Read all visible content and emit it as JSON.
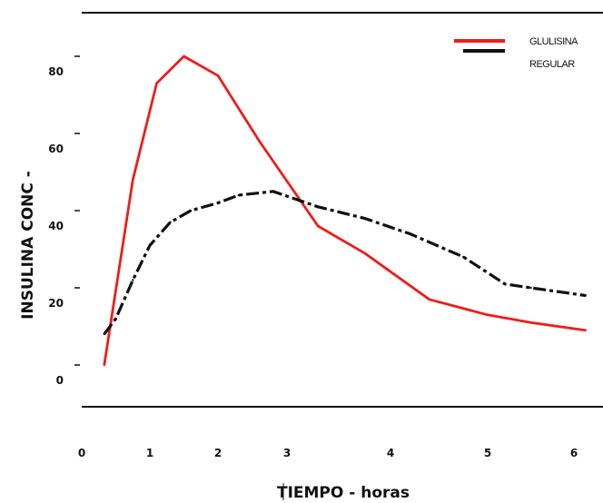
{
  "chart_data": {
    "type": "line",
    "title": "",
    "xlabel": "TIEMPO - horas",
    "ylabel": "INSULINA CONC -",
    "x_ticks": [
      "0",
      "1",
      "2",
      "3",
      "4",
      "5",
      "6"
    ],
    "y_ticks": [
      "0",
      "20",
      "40",
      "60",
      "80"
    ],
    "xlim": [
      0,
      6.5
    ],
    "ylim": [
      0,
      80
    ],
    "grid": false,
    "legend_position": "top-right",
    "series": [
      {
        "name": "GLULISINA",
        "color": "#ee1c1c",
        "style": "solid",
        "x": [
          0.33,
          0.75,
          1.1,
          1.5,
          2.0,
          2.6,
          3.3,
          3.75,
          4.4,
          5.0,
          5.5,
          6.2
        ],
        "y": [
          0,
          48,
          73,
          80,
          75,
          58,
          36,
          29,
          17,
          13,
          11,
          9
        ]
      },
      {
        "name": "REGULAR",
        "color": "#111111",
        "style": "dashed",
        "x": [
          0.33,
          0.5,
          0.75,
          1.0,
          1.3,
          1.6,
          2.0,
          2.3,
          2.8,
          3.3,
          3.75,
          4.2,
          4.75,
          5.2,
          5.5,
          6.2
        ],
        "y": [
          8,
          12,
          22,
          31,
          37,
          40,
          42,
          44,
          45,
          41,
          38,
          34,
          28,
          21,
          20,
          18
        ]
      }
    ]
  }
}
